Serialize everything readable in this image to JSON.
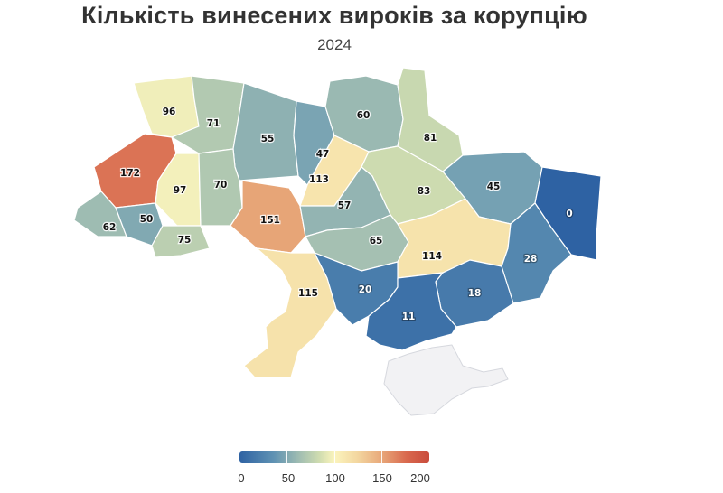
{
  "title": "Кількість винесених вироків за корупцію",
  "subtitle": "2024",
  "chart_data": {
    "type": "choropleth",
    "title": "Кількість винесених вироків за корупцію",
    "subtitle": "2024",
    "regions": [
      {
        "id": "volyn",
        "value": 96
      },
      {
        "id": "rivne",
        "value": 71
      },
      {
        "id": "zhytomyr",
        "value": 55
      },
      {
        "id": "kyiv-oblast",
        "value": 47
      },
      {
        "id": "chernihiv",
        "value": 60
      },
      {
        "id": "sumy",
        "value": 81
      },
      {
        "id": "lviv",
        "value": 172
      },
      {
        "id": "ternopil",
        "value": 97
      },
      {
        "id": "khmelnytskyi",
        "value": 70
      },
      {
        "id": "kyiv-south",
        "value": 113
      },
      {
        "id": "poltava",
        "value": 83
      },
      {
        "id": "kharkiv",
        "value": 45
      },
      {
        "id": "luhansk",
        "value": 0
      },
      {
        "id": "zakarpattia",
        "value": 62
      },
      {
        "id": "ivano-frankivsk",
        "value": 50
      },
      {
        "id": "chernivtsi",
        "value": 75
      },
      {
        "id": "vinnytsia",
        "value": 151
      },
      {
        "id": "cherkasy",
        "value": 57
      },
      {
        "id": "kirovohrad",
        "value": 65
      },
      {
        "id": "dnipropetrovsk",
        "value": 114
      },
      {
        "id": "donetsk",
        "value": 28
      },
      {
        "id": "odesa",
        "value": 115
      },
      {
        "id": "mykolaiv",
        "value": 20
      },
      {
        "id": "zaporizhzhia",
        "value": 18
      },
      {
        "id": "kherson",
        "value": 11
      },
      {
        "id": "crimea",
        "value": null
      }
    ],
    "legend": {
      "ticks": [
        "0",
        "50",
        "100",
        "150",
        "200"
      ],
      "range": [
        0,
        200
      ]
    },
    "colors": {
      "low": "#2e62a3",
      "mid": "#fbf4bd",
      "high": "#c94b3c",
      "no_data": "#f2f2f4"
    }
  }
}
